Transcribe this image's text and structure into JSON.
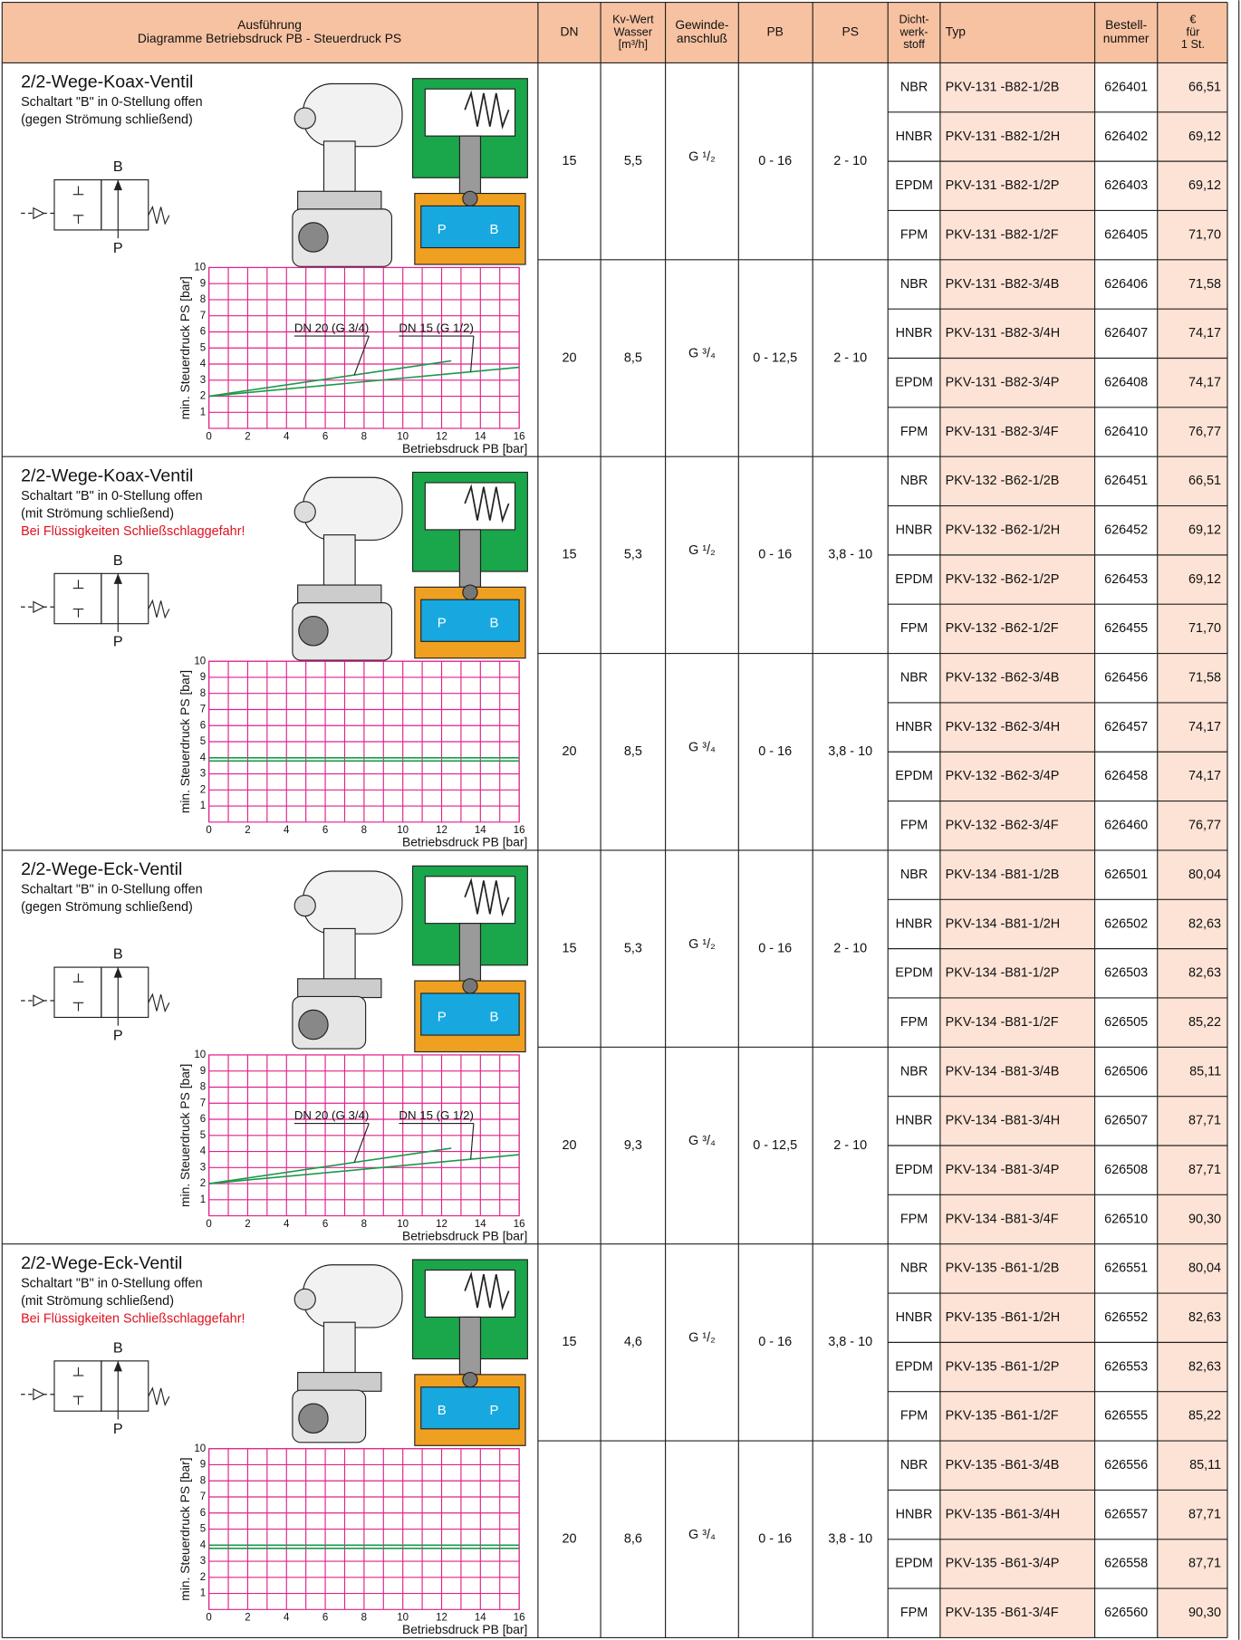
{
  "header": {
    "ausfuehrung": [
      "Ausführung",
      "Diagramme Betriebsdruck PB  - Steuerdruck PS"
    ],
    "columns": [
      [
        "DN"
      ],
      [
        "Kv-Wert",
        "Wasser",
        "[m³/h]"
      ],
      [
        "Gewinde-",
        "anschluß"
      ],
      [
        "PB"
      ],
      [
        "PS"
      ],
      [
        "Dicht-",
        "werk-",
        "stoff"
      ],
      [
        "Typ"
      ],
      [
        "Bestell-",
        "nummer"
      ],
      [
        "€",
        "für",
        "1 St."
      ]
    ]
  },
  "groups": [
    {
      "title": "2/2-Wege-Koax-Ventil",
      "lines": [
        "Schaltart \"B\" in 0-Stellung offen",
        "(gegen Strömung schließend)"
      ],
      "symbol": [
        "B",
        "P"
      ],
      "cutaway_labels": [
        "P",
        "B"
      ],
      "chart": {
        "type": "line",
        "xlim": [
          0,
          16
        ],
        "ylim": [
          0,
          10
        ],
        "xticks": [
          0,
          2,
          4,
          6,
          8,
          10,
          12,
          14,
          16
        ],
        "x_minor_ticks": [
          1,
          3,
          5,
          7,
          9,
          11,
          13,
          15
        ],
        "yticks": [
          1,
          2,
          3,
          4,
          5,
          6,
          7,
          8,
          9,
          10
        ],
        "grid_color": "#e0228c",
        "x_label": "Betriebsdruck PB [bar]",
        "y_label": "min. Steuerdruck PS [bar]",
        "series": [
          {
            "name": "DN 20 (G 3/4)",
            "color": "#1a9a4a",
            "x": [
              0,
              12.5
            ],
            "values": [
              2,
              4.2
            ]
          },
          {
            "name": "DN 15 (G 1/2)",
            "color": "#1a9a4a",
            "x": [
              0,
              16
            ],
            "values": [
              2,
              3.8
            ]
          }
        ]
      },
      "variants": [
        {
          "dn": "15",
          "kv": "5,5",
          "gewinde": "G ¹/₂",
          "pb": "0 - 16",
          "ps": "2 - 10",
          "rows": [
            [
              "NBR",
              "PKV-131 -B82-1/2B",
              "626401",
              "66,51"
            ],
            [
              "HNBR",
              "PKV-131 -B82-1/2H",
              "626402",
              "69,12"
            ],
            [
              "EPDM",
              "PKV-131 -B82-1/2P",
              "626403",
              "69,12"
            ],
            [
              "FPM",
              "PKV-131 -B82-1/2F",
              "626405",
              "71,70"
            ]
          ]
        },
        {
          "dn": "20",
          "kv": "8,5",
          "gewinde": "G ³/₄",
          "pb": "0 - 12,5",
          "ps": "2 - 10",
          "rows": [
            [
              "NBR",
              "PKV-131 -B82-3/4B",
              "626406",
              "71,58"
            ],
            [
              "HNBR",
              "PKV-131 -B82-3/4H",
              "626407",
              "74,17"
            ],
            [
              "EPDM",
              "PKV-131 -B82-3/4P",
              "626408",
              "74,17"
            ],
            [
              "FPM",
              "PKV-131 -B82-3/4F",
              "626410",
              "76,77"
            ]
          ]
        }
      ]
    },
    {
      "title": "2/2-Wege-Koax-Ventil",
      "lines": [
        "Schaltart \"B\" in 0-Stellung offen",
        "(mit Strömung schließend)"
      ],
      "warning": "Bei Flüssigkeiten Schließschlaggefahr!",
      "symbol": [
        "B",
        "P"
      ],
      "cutaway_labels": [
        "P",
        "B"
      ],
      "chart": {
        "type": "line",
        "xlim": [
          0,
          16
        ],
        "ylim": [
          0,
          10
        ],
        "xticks": [
          0,
          2,
          4,
          6,
          8,
          10,
          12,
          14,
          16
        ],
        "x_minor_ticks": [
          1,
          3,
          5,
          7,
          9,
          11,
          13,
          15
        ],
        "yticks": [
          1,
          2,
          3,
          4,
          5,
          6,
          7,
          8,
          9,
          10
        ],
        "grid_color": "#e0228c",
        "x_label": "Betriebsdruck PB [bar]",
        "y_label": "min. Steuerdruck PS [bar]",
        "series": [
          {
            "color": "#1a9a4a",
            "x": [
              0,
              16
            ],
            "values": [
              4,
              4
            ]
          },
          {
            "color": "#1a9a4a",
            "x": [
              0,
              16
            ],
            "values": [
              3.8,
              3.8
            ]
          }
        ]
      },
      "variants": [
        {
          "dn": "15",
          "kv": "5,3",
          "gewinde": "G ¹/₂",
          "pb": "0 - 16",
          "ps": "3,8 - 10",
          "rows": [
            [
              "NBR",
              "PKV-132 -B62-1/2B",
              "626451",
              "66,51"
            ],
            [
              "HNBR",
              "PKV-132 -B62-1/2H",
              "626452",
              "69,12"
            ],
            [
              "EPDM",
              "PKV-132 -B62-1/2P",
              "626453",
              "69,12"
            ],
            [
              "FPM",
              "PKV-132 -B62-1/2F",
              "626455",
              "71,70"
            ]
          ]
        },
        {
          "dn": "20",
          "kv": "8,5",
          "gewinde": "G ³/₄",
          "pb": "0 - 16",
          "ps": "3,8 - 10",
          "rows": [
            [
              "NBR",
              "PKV-132 -B62-3/4B",
              "626456",
              "71,58"
            ],
            [
              "HNBR",
              "PKV-132 -B62-3/4H",
              "626457",
              "74,17"
            ],
            [
              "EPDM",
              "PKV-132 -B62-3/4P",
              "626458",
              "74,17"
            ],
            [
              "FPM",
              "PKV-132 -B62-3/4F",
              "626460",
              "76,77"
            ]
          ]
        }
      ]
    },
    {
      "title": "2/2-Wege-Eck-Ventil",
      "lines": [
        "Schaltart \"B\" in 0-Stellung offen",
        "(gegen Strömung schließend)"
      ],
      "symbol": [
        "B",
        "P"
      ],
      "cutaway_labels": [
        "P",
        "B"
      ],
      "chart": {
        "type": "line",
        "xlim": [
          0,
          16
        ],
        "ylim": [
          0,
          10
        ],
        "xticks": [
          0,
          2,
          4,
          6,
          8,
          10,
          12,
          14,
          16
        ],
        "x_minor_ticks": [
          1,
          3,
          5,
          7,
          9,
          11,
          13,
          15
        ],
        "yticks": [
          1,
          2,
          3,
          4,
          5,
          6,
          7,
          8,
          9,
          10
        ],
        "grid_color": "#e0228c",
        "x_label": "Betriebsdruck PB [bar]",
        "y_label": "min. Steuerdruck PS [bar]",
        "series": [
          {
            "name": "DN 20 (G 3/4)",
            "color": "#1a9a4a",
            "x": [
              0,
              12.5
            ],
            "values": [
              2,
              4.2
            ]
          },
          {
            "name": "DN 15 (G 1/2)",
            "color": "#1a9a4a",
            "x": [
              0,
              16
            ],
            "values": [
              2,
              3.8
            ]
          }
        ]
      },
      "variants": [
        {
          "dn": "15",
          "kv": "5,3",
          "gewinde": "G ¹/₂",
          "pb": "0 - 16",
          "ps": "2 - 10",
          "rows": [
            [
              "NBR",
              "PKV-134 -B81-1/2B",
              "626501",
              "80,04"
            ],
            [
              "HNBR",
              "PKV-134 -B81-1/2H",
              "626502",
              "82,63"
            ],
            [
              "EPDM",
              "PKV-134 -B81-1/2P",
              "626503",
              "82,63"
            ],
            [
              "FPM",
              "PKV-134 -B81-1/2F",
              "626505",
              "85,22"
            ]
          ]
        },
        {
          "dn": "20",
          "kv": "9,3",
          "gewinde": "G ³/₄",
          "pb": "0 - 12,5",
          "ps": "2 - 10",
          "rows": [
            [
              "NBR",
              "PKV-134 -B81-3/4B",
              "626506",
              "85,11"
            ],
            [
              "HNBR",
              "PKV-134 -B81-3/4H",
              "626507",
              "87,71"
            ],
            [
              "EPDM",
              "PKV-134 -B81-3/4P",
              "626508",
              "87,71"
            ],
            [
              "FPM",
              "PKV-134 -B81-3/4F",
              "626510",
              "90,30"
            ]
          ]
        }
      ]
    },
    {
      "title": "2/2-Wege-Eck-Ventil",
      "lines": [
        "Schaltart \"B\" in 0-Stellung offen",
        "(mit Strömung schließend)"
      ],
      "warning": "Bei Flüssigkeiten Schließschlaggefahr!",
      "symbol": [
        "B",
        "P"
      ],
      "cutaway_labels": [
        "B",
        "P"
      ],
      "chart": {
        "type": "line",
        "xlim": [
          0,
          16
        ],
        "ylim": [
          0,
          10
        ],
        "xticks": [
          0,
          2,
          4,
          6,
          8,
          10,
          12,
          14,
          16
        ],
        "x_minor_ticks": [
          1,
          3,
          5,
          7,
          9,
          11,
          13,
          15
        ],
        "yticks": [
          1,
          2,
          3,
          4,
          5,
          6,
          7,
          8,
          9,
          10
        ],
        "grid_color": "#e0228c",
        "x_label": "Betriebsdruck PB [bar]",
        "y_label": "min. Steuerdruck PS [bar]",
        "series": [
          {
            "color": "#1a9a4a",
            "x": [
              0,
              16
            ],
            "values": [
              4,
              4
            ]
          },
          {
            "color": "#1a9a4a",
            "x": [
              0,
              16
            ],
            "values": [
              3.8,
              3.8
            ]
          }
        ]
      },
      "variants": [
        {
          "dn": "15",
          "kv": "4,6",
          "gewinde": "G ¹/₂",
          "pb": "0 - 16",
          "ps": "3,8 - 10",
          "rows": [
            [
              "NBR",
              "PKV-135 -B61-1/2B",
              "626551",
              "80,04"
            ],
            [
              "HNBR",
              "PKV-135 -B61-1/2H",
              "626552",
              "82,63"
            ],
            [
              "EPDM",
              "PKV-135 -B61-1/2P",
              "626553",
              "82,63"
            ],
            [
              "FPM",
              "PKV-135 -B61-1/2F",
              "626555",
              "85,22"
            ]
          ]
        },
        {
          "dn": "20",
          "kv": "8,6",
          "gewinde": "G ³/₄",
          "pb": "0 - 16",
          "ps": "3,8 - 10",
          "rows": [
            [
              "NBR",
              "PKV-135 -B61-3/4B",
              "626556",
              "85,11"
            ],
            [
              "HNBR",
              "PKV-135 -B61-3/4H",
              "626557",
              "87,71"
            ],
            [
              "EPDM",
              "PKV-135 -B61-3/4P",
              "626558",
              "87,71"
            ],
            [
              "FPM",
              "PKV-135 -B61-3/4F",
              "626560",
              "90,30"
            ]
          ]
        }
      ]
    }
  ]
}
